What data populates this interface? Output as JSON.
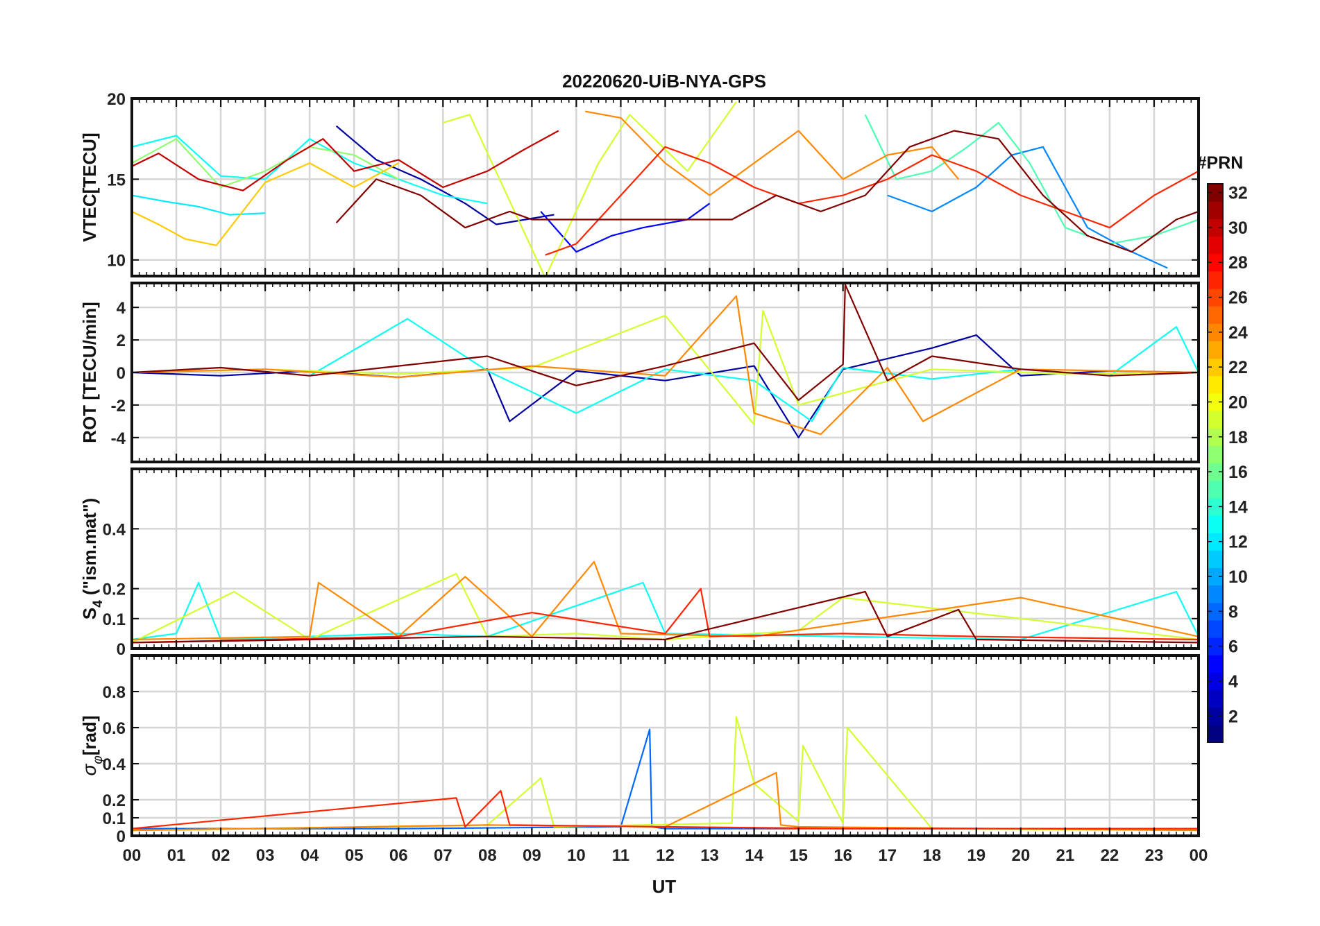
{
  "chart_data": [
    {
      "type": "line",
      "title": "20220620-UiB-NYA-GPS",
      "xlabel": "",
      "ylabel": "VTEC[TECU]",
      "xlim": [
        0,
        24
      ],
      "ylim": [
        9,
        20
      ],
      "yticks": [
        10,
        15,
        20
      ],
      "grid": true,
      "series": [
        {
          "name": "PRN 2",
          "x": [
            4.6,
            5.5,
            6.5,
            7.5,
            8.2,
            9.5
          ],
          "y": [
            18.3,
            16.2,
            15.0,
            13.5,
            12.2,
            12.8
          ]
        },
        {
          "name": "PRN 5",
          "x": [
            9.2,
            10.0,
            10.8,
            11.5,
            12.5,
            13.0
          ],
          "y": [
            13.0,
            10.5,
            11.5,
            12.0,
            12.5,
            13.5
          ]
        },
        {
          "name": "PRN 9",
          "x": [
            17.0,
            18.0,
            19.0,
            19.8,
            20.5,
            21.5,
            22.5,
            23.3
          ],
          "y": [
            14.0,
            13.0,
            14.5,
            16.5,
            17.0,
            12.0,
            10.5,
            9.5
          ]
        },
        {
          "name": "PRN 12",
          "x": [
            0.0,
            0.8,
            1.5,
            2.2,
            3.0
          ],
          "y": [
            14.0,
            13.6,
            13.3,
            12.8,
            12.9
          ]
        },
        {
          "name": "PRN 13",
          "x": [
            0.0,
            1.0,
            2.0,
            3.0,
            4.0,
            5.0,
            6.0,
            7.0,
            8.0
          ],
          "y": [
            17.0,
            17.7,
            15.2,
            15.0,
            17.5,
            16.0,
            15.0,
            14.0,
            13.5
          ]
        },
        {
          "name": "PRN 15",
          "x": [
            16.5,
            17.2,
            18.0,
            18.8,
            19.5,
            20.2,
            21.0,
            22.0,
            23.0,
            24.0
          ],
          "y": [
            19.0,
            15.0,
            15.5,
            17.0,
            18.5,
            16.0,
            12.0,
            11.0,
            11.5,
            12.5
          ]
        },
        {
          "name": "PRN 17",
          "x": [
            0.0,
            1.0,
            2.0,
            3.0,
            4.0,
            5.0,
            6.0
          ],
          "y": [
            16.0,
            17.5,
            14.5,
            15.5,
            17.0,
            16.5,
            15.0
          ]
        },
        {
          "name": "PRN 19",
          "x": [
            7.0,
            7.6,
            9.3,
            10.5,
            11.2,
            12.5,
            13.6
          ],
          "y": [
            18.5,
            19.0,
            8.9,
            16.0,
            19.0,
            15.5,
            19.8
          ]
        },
        {
          "name": "PRN 22",
          "x": [
            0.0,
            0.6,
            1.2,
            1.9,
            3.0,
            4.0,
            5.0,
            6.0
          ],
          "y": [
            13.0,
            12.2,
            11.3,
            10.9,
            14.8,
            16.0,
            14.5,
            16.0
          ]
        },
        {
          "name": "PRN 24",
          "x": [
            10.2,
            11.0,
            12.0,
            13.0,
            14.0,
            15.0,
            16.0,
            17.0,
            18.0,
            18.6
          ],
          "y": [
            19.2,
            18.8,
            16.0,
            14.0,
            16.0,
            18.0,
            15.0,
            16.5,
            17.0,
            15.0
          ]
        },
        {
          "name": "PRN 27",
          "x": [
            9.3,
            10.0,
            11.0,
            12.0,
            13.0,
            14.0,
            15.0,
            16.0,
            17.0,
            18.0,
            19.0,
            20.0,
            21.0,
            22.0,
            23.0,
            24.0
          ],
          "y": [
            10.3,
            11.0,
            14.0,
            17.0,
            16.0,
            14.5,
            13.5,
            14.0,
            15.0,
            16.5,
            15.5,
            14.0,
            13.0,
            12.0,
            14.0,
            15.5
          ]
        },
        {
          "name": "PRN 30",
          "x": [
            0.0,
            0.6,
            1.5,
            2.5,
            3.5,
            4.3,
            5.0,
            6.0,
            7.0,
            8.0,
            8.8,
            9.6
          ],
          "y": [
            15.8,
            16.6,
            15.0,
            14.3,
            16.2,
            17.5,
            15.5,
            16.2,
            14.5,
            15.5,
            16.8,
            18.0
          ]
        },
        {
          "name": "PRN 32",
          "x": [
            4.6,
            5.5,
            6.5,
            7.5,
            8.5,
            9.0,
            13.5,
            14.5,
            15.5,
            16.5,
            17.5,
            18.5,
            19.5,
            20.5,
            21.5,
            22.5,
            23.5,
            24.0
          ],
          "y": [
            12.3,
            15.0,
            14.0,
            12.0,
            13.0,
            12.5,
            12.5,
            14.0,
            13.0,
            14.0,
            17.0,
            18.0,
            17.5,
            14.0,
            11.5,
            10.5,
            12.5,
            13.0
          ]
        }
      ]
    },
    {
      "type": "line",
      "title": "",
      "xlabel": "",
      "ylabel": "ROT [TECU/min]",
      "xlim": [
        0,
        24
      ],
      "ylim": [
        -5.5,
        5.5
      ],
      "yticks": [
        -4,
        -2,
        0,
        2,
        4
      ],
      "grid": true,
      "series": [
        {
          "name": "PRN 2",
          "x": [
            0.0,
            2.0,
            4.0,
            6.0,
            8.0,
            8.5,
            10.0,
            12.0,
            14.0,
            15.0,
            16.0,
            18.0,
            19.0,
            20.0,
            22.0,
            24.0
          ],
          "y": [
            0,
            -0.2,
            0.1,
            -0.3,
            0.2,
            -3.0,
            0.1,
            -0.5,
            0.4,
            -4.0,
            0.2,
            1.5,
            2.3,
            -0.2,
            0.1,
            0
          ]
        },
        {
          "name": "PRN 13",
          "x": [
            0.0,
            2.0,
            4.0,
            6.2,
            8.0,
            10.0,
            12.0,
            14.0,
            15.3,
            16.0,
            18.0,
            20.0,
            22.0,
            23.5,
            24.0
          ],
          "y": [
            0,
            0.3,
            -0.2,
            3.3,
            0.1,
            -2.5,
            0.2,
            -0.5,
            -3.0,
            0.3,
            -0.4,
            0.2,
            -0.2,
            2.8,
            0
          ]
        },
        {
          "name": "PRN 19",
          "x": [
            0.0,
            3.0,
            6.0,
            9.0,
            12.0,
            14.0,
            14.2,
            15.0,
            18.0,
            21.0,
            24.0
          ],
          "y": [
            0,
            0.2,
            -0.1,
            0.3,
            3.5,
            -3.2,
            3.8,
            -2.0,
            0.2,
            -0.1,
            0
          ]
        },
        {
          "name": "PRN 24",
          "x": [
            0.0,
            3.0,
            6.0,
            9.0,
            12.0,
            13.6,
            14.0,
            15.5,
            17.0,
            17.8,
            20.0,
            24.0
          ],
          "y": [
            0,
            0.2,
            -0.3,
            0.4,
            -0.2,
            4.7,
            -2.5,
            -3.8,
            0.3,
            -3.0,
            0.2,
            0
          ]
        },
        {
          "name": "PRN 32",
          "x": [
            0.0,
            2.0,
            4.0,
            6.0,
            8.0,
            10.0,
            12.0,
            14.0,
            15.0,
            16.0,
            16.05,
            17.0,
            18.0,
            20.0,
            22.0,
            24.0
          ],
          "y": [
            0,
            0.3,
            -0.2,
            0.4,
            1.0,
            -0.8,
            0.4,
            1.8,
            -1.7,
            0.5,
            5.4,
            -0.5,
            1.0,
            0.2,
            -0.2,
            0
          ]
        }
      ]
    },
    {
      "type": "line",
      "title": "",
      "xlabel": "",
      "ylabel": "S4 (\"ism.mat\")",
      "ylabel_main": "S",
      "ylabel_sub": "4",
      "ylabel_rest": " (\"ism.mat\")",
      "xlim": [
        0,
        24
      ],
      "ylim": [
        0,
        0.6
      ],
      "yticks": [
        0,
        0.1,
        0.2,
        0.4
      ],
      "grid": true,
      "series": [
        {
          "name": "PRN 13",
          "x": [
            0.0,
            1.0,
            1.5,
            2.0,
            4.0,
            6.0,
            8.0,
            11.5,
            12.0,
            16.0,
            20.0,
            23.5,
            24.0
          ],
          "y": [
            0.03,
            0.05,
            0.22,
            0.03,
            0.04,
            0.05,
            0.04,
            0.22,
            0.05,
            0.04,
            0.03,
            0.19,
            0.04
          ]
        },
        {
          "name": "PRN 19",
          "x": [
            0.0,
            2.3,
            4.0,
            7.3,
            8.0,
            10.0,
            12.0,
            15.0,
            16.0,
            24.0
          ],
          "y": [
            0.02,
            0.19,
            0.03,
            0.25,
            0.04,
            0.05,
            0.03,
            0.06,
            0.17,
            0.03
          ]
        },
        {
          "name": "PRN 24",
          "x": [
            0.0,
            4.0,
            4.2,
            6.0,
            7.5,
            9.0,
            10.4,
            11.0,
            14.0,
            20.0,
            24.0
          ],
          "y": [
            0.03,
            0.04,
            0.22,
            0.04,
            0.24,
            0.04,
            0.29,
            0.05,
            0.04,
            0.17,
            0.04
          ]
        },
        {
          "name": "PRN 27",
          "x": [
            0.0,
            6.0,
            9.0,
            12.0,
            12.8,
            13.0,
            16.0,
            19.0,
            24.0
          ],
          "y": [
            0.02,
            0.04,
            0.12,
            0.05,
            0.2,
            0.04,
            0.05,
            0.04,
            0.03
          ]
        },
        {
          "name": "PRN 32",
          "x": [
            0.0,
            4.0,
            8.0,
            12.0,
            16.5,
            17.0,
            18.6,
            19.0,
            24.0
          ],
          "y": [
            0.02,
            0.03,
            0.04,
            0.03,
            0.19,
            0.04,
            0.13,
            0.03,
            0.02
          ]
        }
      ]
    },
    {
      "type": "line",
      "title": "",
      "xlabel": "UT",
      "ylabel": "σφ[rad]",
      "ylabel_main": "σ",
      "ylabel_sub": "φ",
      "ylabel_rest": "[rad]",
      "xlim": [
        0,
        24
      ],
      "ylim": [
        0,
        1.0
      ],
      "yticks": [
        0,
        0.1,
        0.2,
        0.4,
        0.6,
        0.8
      ],
      "xticks": [
        "00",
        "01",
        "02",
        "03",
        "04",
        "05",
        "06",
        "07",
        "08",
        "09",
        "10",
        "11",
        "12",
        "13",
        "14",
        "15",
        "16",
        "17",
        "18",
        "19",
        "20",
        "21",
        "22",
        "23",
        "00"
      ],
      "grid": true,
      "series": [
        {
          "name": "PRN 8",
          "x": [
            0.0,
            6.0,
            11.0,
            11.65,
            11.7,
            12.0,
            18.0,
            24.0
          ],
          "y": [
            0.04,
            0.04,
            0.05,
            0.59,
            0.05,
            0.04,
            0.04,
            0.04
          ]
        },
        {
          "name": "PRN 19",
          "x": [
            0.0,
            8.0,
            9.2,
            9.5,
            13.5,
            13.6,
            14.0,
            15.0,
            15.1,
            16.0,
            16.1,
            18.0,
            24.0
          ],
          "y": [
            0.03,
            0.06,
            0.32,
            0.05,
            0.07,
            0.66,
            0.29,
            0.08,
            0.5,
            0.07,
            0.6,
            0.04,
            0.03
          ]
        },
        {
          "name": "PRN 24",
          "x": [
            0.0,
            8.0,
            12.0,
            14.5,
            14.6,
            15.0,
            24.0
          ],
          "y": [
            0.03,
            0.06,
            0.05,
            0.35,
            0.06,
            0.05,
            0.03
          ]
        },
        {
          "name": "PRN 27",
          "x": [
            0.0,
            7.3,
            7.5,
            8.3,
            8.5,
            12.0,
            16.0,
            24.0
          ],
          "y": [
            0.04,
            0.21,
            0.05,
            0.25,
            0.06,
            0.05,
            0.04,
            0.04
          ]
        }
      ]
    }
  ],
  "colorbar": {
    "title": "#PRN",
    "min": 1,
    "max": 32,
    "tick_labels": [
      "2",
      "4",
      "6",
      "8",
      "10",
      "12",
      "14",
      "16",
      "18",
      "20",
      "22",
      "24",
      "26",
      "28",
      "30",
      "32"
    ],
    "tick_values": [
      2,
      4,
      6,
      8,
      10,
      12,
      14,
      16,
      18,
      20,
      22,
      24,
      26,
      28,
      30,
      32
    ]
  }
}
